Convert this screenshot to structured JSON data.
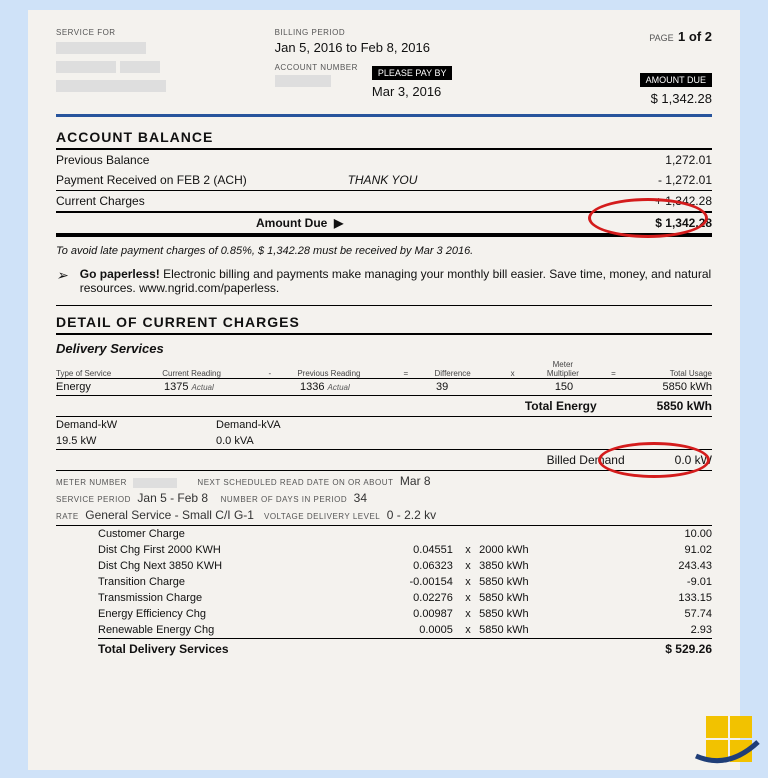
{
  "header": {
    "service_for_label": "SERVICE FOR",
    "billing_period_label": "BILLING PERIOD",
    "billing_period": "Jan 5, 2016  to Feb 8, 2016",
    "account_number_label": "ACCOUNT NUMBER",
    "please_pay_by_label": "PLEASE PAY BY",
    "please_pay_by": "Mar 3, 2016",
    "amount_due_label": "AMOUNT DUE",
    "amount_due": "$ 1,342.28",
    "page_label": "PAGE",
    "page": "1 of 2"
  },
  "account_balance": {
    "title": "ACCOUNT BALANCE",
    "previous_balance_label": "Previous Balance",
    "previous_balance": "1,272.01",
    "payment_received_label": "Payment Received on FEB 2 (ACH)",
    "thank_you": "THANK YOU",
    "payment_received": "- 1,272.01",
    "current_charges_label": "Current Charges",
    "current_charges": "+ 1,342.28",
    "amount_due_label": "Amount Due",
    "amount_due": "$ 1,342.28"
  },
  "late_note": "To avoid late payment charges of 0.85%, $ 1,342.28 must be received by Mar 3 2016.",
  "paperless": {
    "bold": "Go paperless!",
    "rest": "  Electronic billing and payments make managing your monthly bill easier.  Save time, money, and natural resources.  www.ngrid.com/paperless."
  },
  "detail": {
    "title": "DETAIL OF CURRENT CHARGES",
    "delivery_services": "Delivery Services",
    "cols": {
      "type": "Type of Service",
      "current": "Current Reading",
      "minus": "-",
      "previous": "Previous Reading",
      "eq": "=",
      "diff": "Difference",
      "x": "x",
      "mult": "Meter\nMultiplier",
      "eq2": "=",
      "usage": "Total Usage"
    },
    "energy": {
      "type": "Energy",
      "current": "1375",
      "current_tag": "Actual",
      "previous": "1336",
      "previous_tag": "Actual",
      "diff": "39",
      "mult": "150",
      "usage": "5850 kWh"
    },
    "total_energy_label": "Total Energy",
    "total_energy": "5850 kWh",
    "demand_kw_label": "Demand-kW",
    "demand_kw": "19.5 kW",
    "demand_kva_label": "Demand-kVA",
    "demand_kva": "0.0 kVA",
    "billed_demand_label": "Billed Demand",
    "billed_demand": "0.0 kW",
    "meter_number_label": "METER NUMBER",
    "next_read_label": "NEXT SCHEDULED READ DATE ON OR ABOUT",
    "next_read": "Mar 8",
    "service_period_label": "SERVICE PERIOD",
    "service_period": "Jan 5 - Feb 8",
    "days_label": "NUMBER OF DAYS IN PERIOD",
    "days": "34",
    "rate_label": "RATE",
    "rate": "General Service - Small C/I G-1",
    "voltage_label": "VOLTAGE DELIVERY LEVEL",
    "voltage": "0 - 2.2 kv",
    "charges": [
      {
        "name": "Customer Charge",
        "rate": "",
        "x": "",
        "qty": "",
        "amt": "10.00"
      },
      {
        "name": "Dist Chg First 2000 KWH",
        "rate": "0.04551",
        "x": "x",
        "qty": "2000 kWh",
        "amt": "91.02"
      },
      {
        "name": "Dist Chg Next 3850 KWH",
        "rate": "0.06323",
        "x": "x",
        "qty": "3850 kWh",
        "amt": "243.43"
      },
      {
        "name": "Transition Charge",
        "rate": "-0.00154",
        "x": "x",
        "qty": "5850 kWh",
        "amt": "-9.01"
      },
      {
        "name": "Transmission Charge",
        "rate": "0.02276",
        "x": "x",
        "qty": "5850 kWh",
        "amt": "133.15"
      },
      {
        "name": "Energy Efficiency Chg",
        "rate": "0.00987",
        "x": "x",
        "qty": "5850 kWh",
        "amt": "57.74"
      },
      {
        "name": "Renewable Energy Chg",
        "rate": "0.0005",
        "x": "x",
        "qty": "5850 kWh",
        "amt": "2.93"
      }
    ],
    "total_delivery_label": "Total Delivery Services",
    "total_delivery": "$ 529.26"
  },
  "colors": {
    "page_bg": "#cfe2f8",
    "sheet_bg": "#f4f2ee",
    "rule_blue": "#27549c",
    "circle_red": "#d41c1c",
    "logo_yellow": "#f2c200",
    "logo_swoosh": "#1f3e78"
  }
}
